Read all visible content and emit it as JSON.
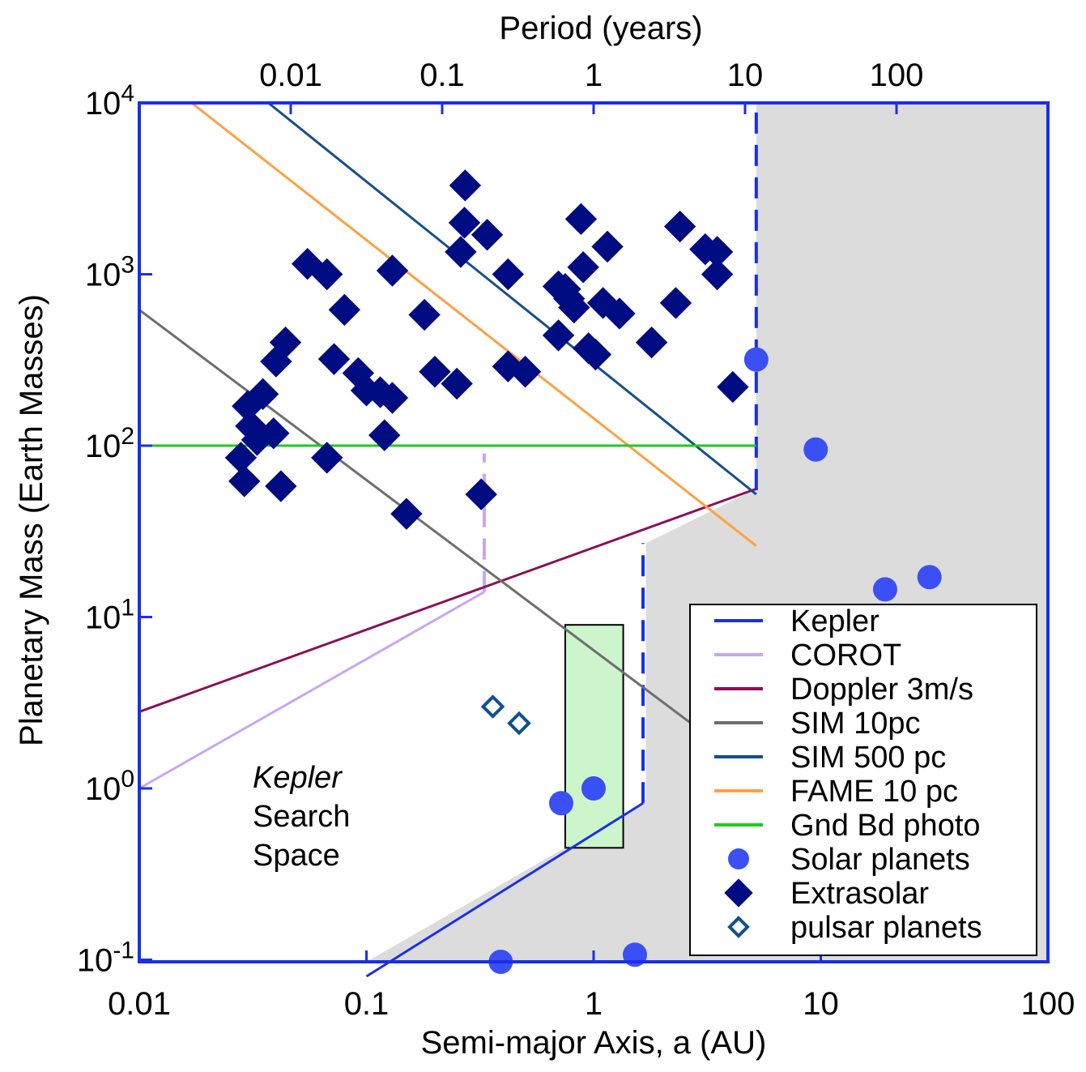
{
  "chart_data": {
    "type": "scatter",
    "title": "",
    "xlabel": "Semi-major Axis, a (AU)",
    "ylabel": "Planetary Mass (Earth Masses)",
    "x2label": "Period (years)",
    "xscale": "log",
    "yscale": "log",
    "xlim": [
      0.01,
      100
    ],
    "ylim": [
      0.08,
      10000
    ],
    "x_ticks": [
      {
        "value": 0.01,
        "label": "0.01"
      },
      {
        "value": 0.1,
        "label": "0.1"
      },
      {
        "value": 1,
        "label": "1"
      },
      {
        "value": 10,
        "label": "10"
      },
      {
        "value": 100,
        "label": "100"
      }
    ],
    "y_ticks": [
      {
        "value": 0.1,
        "base": "10",
        "exp": "-1"
      },
      {
        "value": 1,
        "base": "10",
        "exp": "0"
      },
      {
        "value": 10,
        "base": "10",
        "exp": "1"
      },
      {
        "value": 100,
        "base": "10",
        "exp": "2"
      },
      {
        "value": 1000,
        "base": "10",
        "exp": "3"
      },
      {
        "value": 10000,
        "base": "10",
        "exp": "4"
      }
    ],
    "period_ticks": [
      {
        "value": 0.01,
        "label": "0.01"
      },
      {
        "value": 0.1,
        "label": "0.1"
      },
      {
        "value": 1,
        "label": "1"
      },
      {
        "value": 10,
        "label": "10"
      },
      {
        "value": 100,
        "label": "100"
      }
    ],
    "annotation": {
      "italic": "Kepler",
      "line2": "Search",
      "line3": "Space"
    },
    "legend": {
      "position": "bottom-right"
    },
    "colors": {
      "frame": "#1a2fe6",
      "shade": "#dcdcdc",
      "green_box_fill": "#ccf5cc",
      "kepler": "#1a2fe6",
      "corot": "#c9a6f2",
      "doppler": "#8c0f59",
      "sim10": "#6e6e6e",
      "sim500": "#12508c",
      "fame": "#ffa040",
      "gnd": "#22c822",
      "solar": "#3a50f5",
      "extrasolar": "#000c82",
      "pulsar": "#12508c"
    },
    "region_shaded": {
      "name": "",
      "x_from": 1.7,
      "x_to_top": 5.2,
      "y_split": 0.85
    },
    "habitable_box": {
      "x": [
        0.75,
        1.35
      ],
      "y": [
        0.45,
        9.0
      ]
    },
    "series": [
      {
        "name": "Kepler",
        "kind": "line",
        "color": "#1a2fe6",
        "segments": [
          {
            "x": [
              0.1,
              1.65
            ],
            "y": [
              0.08,
              0.82
            ]
          },
          {
            "x": [
              1.65,
              1.65
            ],
            "y": [
              0.82,
              27
            ],
            "dashed": true
          },
          {
            "x": [
              5.2,
              5.2
            ],
            "y": [
              55,
              10000
            ],
            "dashed": true
          }
        ]
      },
      {
        "name": "COROT",
        "kind": "line",
        "color": "#c9a6f2",
        "segments": [
          {
            "x": [
              0.01,
              0.33
            ],
            "y": [
              1.0,
              14
            ]
          },
          {
            "x": [
              0.33,
              0.33
            ],
            "y": [
              14,
              90
            ],
            "dashed": true
          }
        ]
      },
      {
        "name": "Doppler 3m/s",
        "kind": "line",
        "color": "#8c0f59",
        "segments": [
          {
            "x": [
              0.01,
              5.2
            ],
            "y": [
              2.8,
              56
            ]
          }
        ]
      },
      {
        "name": "SIM 10pc",
        "kind": "line",
        "color": "#6e6e6e",
        "segments": [
          {
            "x": [
              0.01,
              2.8
            ],
            "y": [
              620,
              2.3
            ]
          }
        ]
      },
      {
        "name": "SIM 500 pc",
        "kind": "line",
        "color": "#12508c",
        "segments": [
          {
            "x": [
              0.037,
              5.2
            ],
            "y": [
              10000,
              52
            ]
          }
        ]
      },
      {
        "name": "FAME 10 pc",
        "kind": "line",
        "color": "#ffa040",
        "segments": [
          {
            "x": [
              0.017,
              5.2
            ],
            "y": [
              10000,
              26
            ]
          }
        ]
      },
      {
        "name": "Gnd Bd photo",
        "kind": "line",
        "color": "#22c822",
        "segments": [
          {
            "x": [
              0.01,
              5.2
            ],
            "y": [
              100,
              100
            ]
          }
        ]
      },
      {
        "name": "Solar planets",
        "kind": "circle",
        "color": "#3a50f5",
        "points": [
          {
            "x": 0.39,
            "y": 0.055
          },
          {
            "x": 0.72,
            "y": 0.82
          },
          {
            "x": 1.0,
            "y": 1.0
          },
          {
            "x": 1.52,
            "y": 0.107
          },
          {
            "x": 5.2,
            "y": 318
          },
          {
            "x": 9.5,
            "y": 95
          },
          {
            "x": 19.2,
            "y": 14.5
          },
          {
            "x": 30.1,
            "y": 17.1
          }
        ]
      },
      {
        "name": "Extrasolar",
        "kind": "diamond",
        "color": "#000c82",
        "points": [
          {
            "x": 0.272,
            "y": 3300
          },
          {
            "x": 0.04,
            "y": 310
          },
          {
            "x": 0.27,
            "y": 2000
          },
          {
            "x": 0.34,
            "y": 1700
          },
          {
            "x": 0.26,
            "y": 1350
          },
          {
            "x": 0.42,
            "y": 1000
          },
          {
            "x": 0.88,
            "y": 2100
          },
          {
            "x": 1.15,
            "y": 1450
          },
          {
            "x": 2.4,
            "y": 1900
          },
          {
            "x": 3.1,
            "y": 1400
          },
          {
            "x": 3.5,
            "y": 1350
          },
          {
            "x": 3.5,
            "y": 1000
          },
          {
            "x": 0.9,
            "y": 1100
          },
          {
            "x": 0.055,
            "y": 1150
          },
          {
            "x": 0.067,
            "y": 1000
          },
          {
            "x": 0.13,
            "y": 1050
          },
          {
            "x": 0.08,
            "y": 620
          },
          {
            "x": 0.044,
            "y": 400
          },
          {
            "x": 0.072,
            "y": 320
          },
          {
            "x": 0.092,
            "y": 265
          },
          {
            "x": 0.1,
            "y": 210
          },
          {
            "x": 0.115,
            "y": 205
          },
          {
            "x": 0.13,
            "y": 190
          },
          {
            "x": 0.035,
            "y": 200
          },
          {
            "x": 0.03,
            "y": 170
          },
          {
            "x": 0.031,
            "y": 130
          },
          {
            "x": 0.039,
            "y": 118
          },
          {
            "x": 0.033,
            "y": 108
          },
          {
            "x": 0.028,
            "y": 85
          },
          {
            "x": 0.029,
            "y": 62
          },
          {
            "x": 0.042,
            "y": 58
          },
          {
            "x": 0.067,
            "y": 85
          },
          {
            "x": 0.12,
            "y": 115
          },
          {
            "x": 0.15,
            "y": 40
          },
          {
            "x": 0.18,
            "y": 580
          },
          {
            "x": 0.2,
            "y": 270
          },
          {
            "x": 0.25,
            "y": 230
          },
          {
            "x": 0.32,
            "y": 52
          },
          {
            "x": 0.42,
            "y": 290
          },
          {
            "x": 0.5,
            "y": 270
          },
          {
            "x": 0.7,
            "y": 850
          },
          {
            "x": 0.75,
            "y": 820
          },
          {
            "x": 0.78,
            "y": 720
          },
          {
            "x": 0.82,
            "y": 640
          },
          {
            "x": 0.95,
            "y": 370
          },
          {
            "x": 1.02,
            "y": 340
          },
          {
            "x": 0.7,
            "y": 440
          },
          {
            "x": 1.1,
            "y": 680
          },
          {
            "x": 1.3,
            "y": 590
          },
          {
            "x": 2.3,
            "y": 680
          },
          {
            "x": 1.8,
            "y": 400
          },
          {
            "x": 4.1,
            "y": 220
          }
        ]
      },
      {
        "name": "pulsar planets",
        "kind": "diamond-open",
        "color": "#12508c",
        "points": [
          {
            "x": 0.36,
            "y": 3.0
          },
          {
            "x": 0.47,
            "y": 2.4
          }
        ]
      }
    ]
  }
}
